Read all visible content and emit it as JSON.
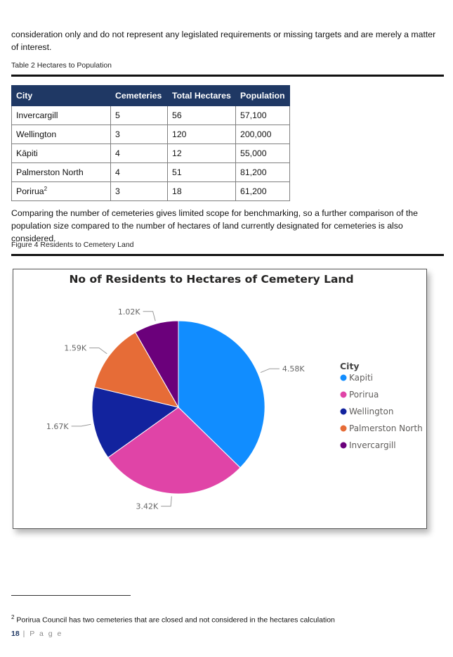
{
  "intro_text": "consideration only and do not represent any legislated requirements or missing targets and are merely a matter of interest.",
  "table_caption": "Table 2 Hectares to Population",
  "table": {
    "headers": [
      "City",
      "Cemeteries",
      "Total Hectares",
      "Population"
    ],
    "rows": [
      [
        "Invercargill",
        "5",
        "56",
        "57,100"
      ],
      [
        "Wellington",
        "3",
        "120",
        "200,000"
      ],
      [
        "Kāpiti",
        "4",
        "12",
        "55,000"
      ],
      [
        "Palmerston North",
        "4",
        "51",
        "81,200"
      ],
      [
        "Porirua",
        "3",
        "18",
        "61,200"
      ]
    ],
    "footnote_marker": "2"
  },
  "body_text": "Comparing the number of cemeteries gives limited scope for benchmarking, so a further comparison of the population size compared to the number of hectares of land currently designated for cemeteries is also considered.",
  "figure_caption": "Figure 4 Residents to Cemetery Land",
  "chart_data": {
    "type": "pie",
    "title": "No of Residents to Hectares of Cemetery Land",
    "legend_title": "City",
    "legend_position": "right",
    "slices": [
      {
        "name": "Kapiti",
        "value": 4.58,
        "label": "4.58K",
        "color": "#118dff"
      },
      {
        "name": "Porirua",
        "value": 3.42,
        "label": "3.42K",
        "color": "#e044a7"
      },
      {
        "name": "Wellington",
        "value": 1.67,
        "label": "1.67K",
        "color": "#12239e"
      },
      {
        "name": "Palmerston North",
        "value": 1.59,
        "label": "1.59K",
        "color": "#e66c37"
      },
      {
        "name": "Invercargill",
        "value": 1.02,
        "label": "1.02K",
        "color": "#6b007b"
      }
    ]
  },
  "footnote": {
    "marker": "2",
    "text": "Porirua Council has two cemeteries that are closed and not considered in the hectares calculation"
  },
  "page": {
    "number": "18",
    "separator": " | ",
    "label": "P a g e"
  }
}
